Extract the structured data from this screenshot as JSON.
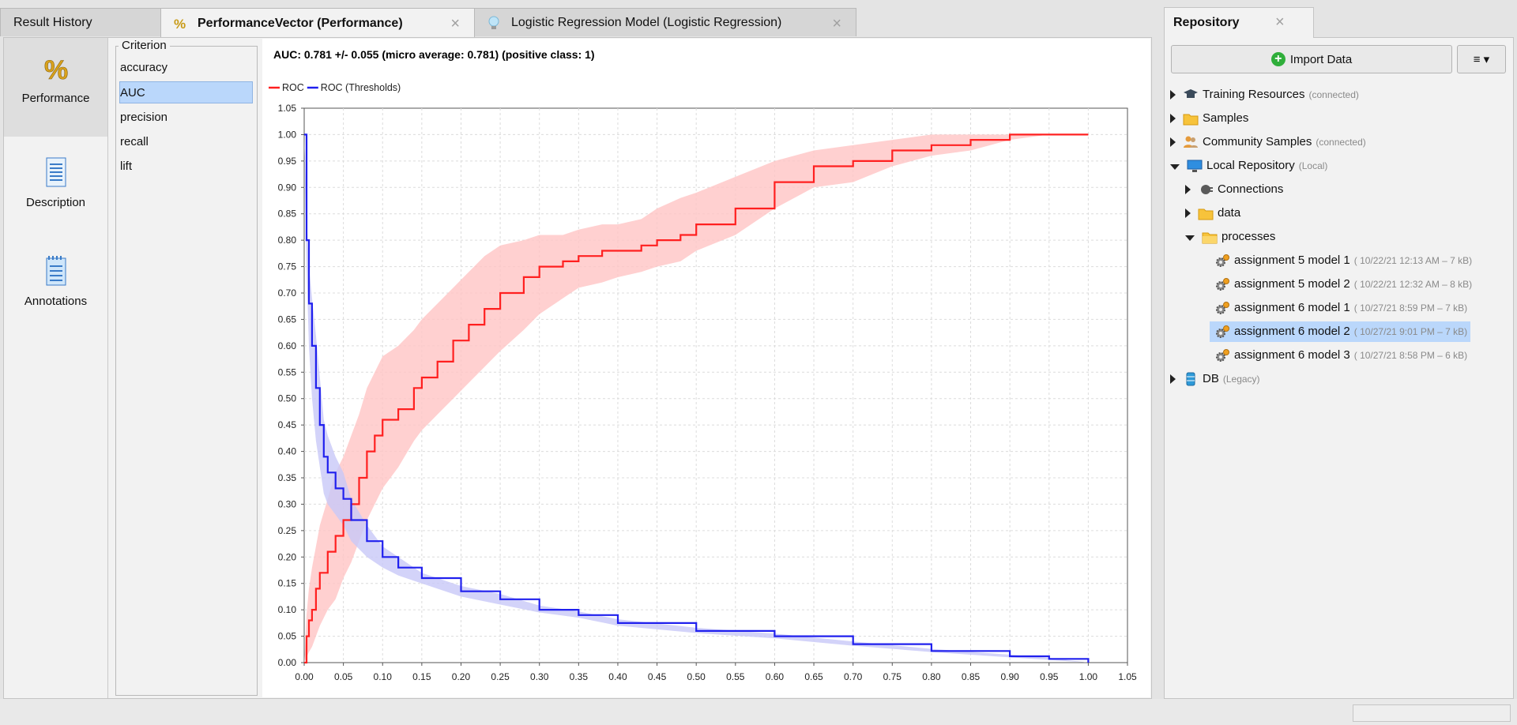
{
  "tabs": [
    {
      "label": "Result History",
      "icon": "none",
      "closable": false,
      "active": false
    },
    {
      "label": "PerformanceVector (Performance)",
      "icon": "percent-icon",
      "closable": true,
      "active": true
    },
    {
      "label": "Logistic Regression Model (Logistic Regression)",
      "icon": "lightbulb-icon",
      "closable": true,
      "active": false
    }
  ],
  "close_glyph": "×",
  "vnav": [
    {
      "label": "Performance",
      "icon": "percent-icon",
      "active": true
    },
    {
      "label": "Description",
      "icon": "document-icon",
      "active": false
    },
    {
      "label": "Annotations",
      "icon": "notepad-icon",
      "active": false
    }
  ],
  "criterion": {
    "legend": "Criterion",
    "items": [
      "accuracy",
      "AUC",
      "precision",
      "recall",
      "lift"
    ],
    "selected": "AUC"
  },
  "chart_data": {
    "type": "line",
    "title": "AUC: 0.781 +/- 0.055 (micro average: 0.781) (positive class: 1)",
    "xlabel": "",
    "ylabel": "",
    "xlim": [
      0,
      1.05
    ],
    "ylim": [
      0,
      1.05
    ],
    "grid": true,
    "legend": "top-left",
    "x_ticks": [
      "0.00",
      "0.05",
      "0.10",
      "0.15",
      "0.20",
      "0.25",
      "0.30",
      "0.35",
      "0.40",
      "0.45",
      "0.50",
      "0.55",
      "0.60",
      "0.65",
      "0.70",
      "0.75",
      "0.80",
      "0.85",
      "0.90",
      "0.95",
      "1.00",
      "1.05"
    ],
    "y_ticks": [
      "0.00",
      "0.05",
      "0.10",
      "0.15",
      "0.20",
      "0.25",
      "0.30",
      "0.35",
      "0.40",
      "0.45",
      "0.50",
      "0.55",
      "0.60",
      "0.65",
      "0.70",
      "0.75",
      "0.80",
      "0.85",
      "0.90",
      "0.95",
      "1.00",
      "1.05"
    ],
    "series": [
      {
        "name": "ROC",
        "color": "#ff2020",
        "band_color": "#ffc4c4",
        "x": [
          0,
          0.003,
          0.006,
          0.01,
          0.015,
          0.02,
          0.03,
          0.04,
          0.05,
          0.06,
          0.07,
          0.08,
          0.09,
          0.1,
          0.12,
          0.14,
          0.15,
          0.17,
          0.19,
          0.21,
          0.23,
          0.25,
          0.28,
          0.3,
          0.33,
          0.35,
          0.38,
          0.4,
          0.43,
          0.45,
          0.48,
          0.5,
          0.55,
          0.6,
          0.65,
          0.7,
          0.75,
          0.8,
          0.85,
          0.9,
          0.95,
          1.0
        ],
        "y": [
          0,
          0.05,
          0.08,
          0.1,
          0.14,
          0.17,
          0.21,
          0.24,
          0.27,
          0.3,
          0.35,
          0.4,
          0.43,
          0.46,
          0.48,
          0.52,
          0.54,
          0.57,
          0.61,
          0.64,
          0.67,
          0.7,
          0.73,
          0.75,
          0.76,
          0.77,
          0.78,
          0.78,
          0.79,
          0.8,
          0.81,
          0.83,
          0.86,
          0.91,
          0.94,
          0.95,
          0.97,
          0.98,
          0.99,
          1.0,
          1.0,
          1.0
        ],
        "lower": [
          0,
          0.01,
          0.02,
          0.03,
          0.05,
          0.07,
          0.1,
          0.12,
          0.16,
          0.19,
          0.23,
          0.27,
          0.3,
          0.33,
          0.37,
          0.42,
          0.44,
          0.47,
          0.5,
          0.53,
          0.56,
          0.59,
          0.63,
          0.66,
          0.69,
          0.71,
          0.72,
          0.73,
          0.74,
          0.75,
          0.76,
          0.78,
          0.81,
          0.86,
          0.9,
          0.91,
          0.94,
          0.96,
          0.97,
          0.99,
          1.0,
          1.0
        ],
        "upper": [
          0,
          0.09,
          0.14,
          0.18,
          0.22,
          0.26,
          0.31,
          0.36,
          0.39,
          0.43,
          0.47,
          0.52,
          0.55,
          0.58,
          0.6,
          0.63,
          0.65,
          0.68,
          0.71,
          0.74,
          0.77,
          0.79,
          0.8,
          0.81,
          0.81,
          0.82,
          0.83,
          0.83,
          0.84,
          0.86,
          0.88,
          0.89,
          0.92,
          0.95,
          0.97,
          0.98,
          0.99,
          1.0,
          1.0,
          1.0,
          1.0,
          1.0
        ]
      },
      {
        "name": "ROC (Thresholds)",
        "color": "#2020ee",
        "band_color": "#c8c8f8",
        "x": [
          0,
          0.003,
          0.006,
          0.01,
          0.015,
          0.02,
          0.025,
          0.03,
          0.04,
          0.05,
          0.06,
          0.08,
          0.1,
          0.12,
          0.15,
          0.2,
          0.25,
          0.3,
          0.35,
          0.4,
          0.5,
          0.6,
          0.7,
          0.8,
          0.9,
          0.95,
          1.0
        ],
        "y": [
          1.0,
          0.8,
          0.68,
          0.6,
          0.52,
          0.45,
          0.39,
          0.36,
          0.33,
          0.31,
          0.27,
          0.23,
          0.2,
          0.18,
          0.16,
          0.135,
          0.12,
          0.1,
          0.09,
          0.075,
          0.06,
          0.05,
          0.035,
          0.022,
          0.012,
          0.007,
          0.0
        ],
        "lower": [
          1.0,
          0.75,
          0.6,
          0.5,
          0.42,
          0.37,
          0.32,
          0.3,
          0.28,
          0.26,
          0.23,
          0.2,
          0.18,
          0.165,
          0.15,
          0.125,
          0.11,
          0.095,
          0.085,
          0.07,
          0.056,
          0.046,
          0.032,
          0.02,
          0.01,
          0.005,
          0.0
        ],
        "upper": [
          1.0,
          0.85,
          0.75,
          0.69,
          0.62,
          0.54,
          0.46,
          0.43,
          0.39,
          0.36,
          0.31,
          0.26,
          0.22,
          0.2,
          0.17,
          0.145,
          0.13,
          0.108,
          0.097,
          0.082,
          0.066,
          0.055,
          0.04,
          0.026,
          0.015,
          0.009,
          0.0
        ]
      }
    ]
  },
  "repository": {
    "tab_label": "Repository",
    "import_button": "Import Data",
    "menu_glyph": "≡ ▾",
    "tree": [
      {
        "label": "Training Resources",
        "meta": "(connected)",
        "level": 0,
        "expanded": false,
        "icon": "graduation-cap-icon"
      },
      {
        "label": "Samples",
        "meta": "",
        "level": 0,
        "expanded": false,
        "icon": "folder-icon"
      },
      {
        "label": "Community Samples",
        "meta": "(connected)",
        "level": 0,
        "expanded": false,
        "icon": "people-icon"
      },
      {
        "label": "Local Repository",
        "meta": "(Local)",
        "level": 0,
        "expanded": true,
        "icon": "monitor-icon"
      },
      {
        "label": "Connections",
        "meta": "",
        "level": 1,
        "expanded": false,
        "icon": "plug-icon"
      },
      {
        "label": "data",
        "meta": "",
        "level": 1,
        "expanded": false,
        "icon": "folder-icon"
      },
      {
        "label": "processes",
        "meta": "",
        "level": 1,
        "expanded": true,
        "icon": "folder-open-icon"
      },
      {
        "label": "assignment 5 model 1",
        "meta": "( 10/22/21 12:13 AM – 7 kB)",
        "level": 2,
        "leaf": true,
        "icon": "process-gear-icon"
      },
      {
        "label": "assignment 5 model 2",
        "meta": "( 10/22/21 12:32 AM – 8 kB)",
        "level": 2,
        "leaf": true,
        "icon": "process-gear-icon"
      },
      {
        "label": "assignment 6 model 1",
        "meta": "( 10/27/21 8:59 PM – 7 kB)",
        "level": 2,
        "leaf": true,
        "icon": "process-gear-icon"
      },
      {
        "label": "assignment 6 model 2",
        "meta": "( 10/27/21 9:01 PM – 7 kB)",
        "level": 2,
        "leaf": true,
        "selected": true,
        "icon": "process-gear-icon"
      },
      {
        "label": "assignment 6 model 3",
        "meta": "( 10/27/21 8:58 PM – 6 kB)",
        "level": 2,
        "leaf": true,
        "icon": "process-gear-icon"
      },
      {
        "label": "DB",
        "meta": "(Legacy)",
        "level": 0,
        "expanded": false,
        "icon": "database-icon"
      }
    ]
  }
}
